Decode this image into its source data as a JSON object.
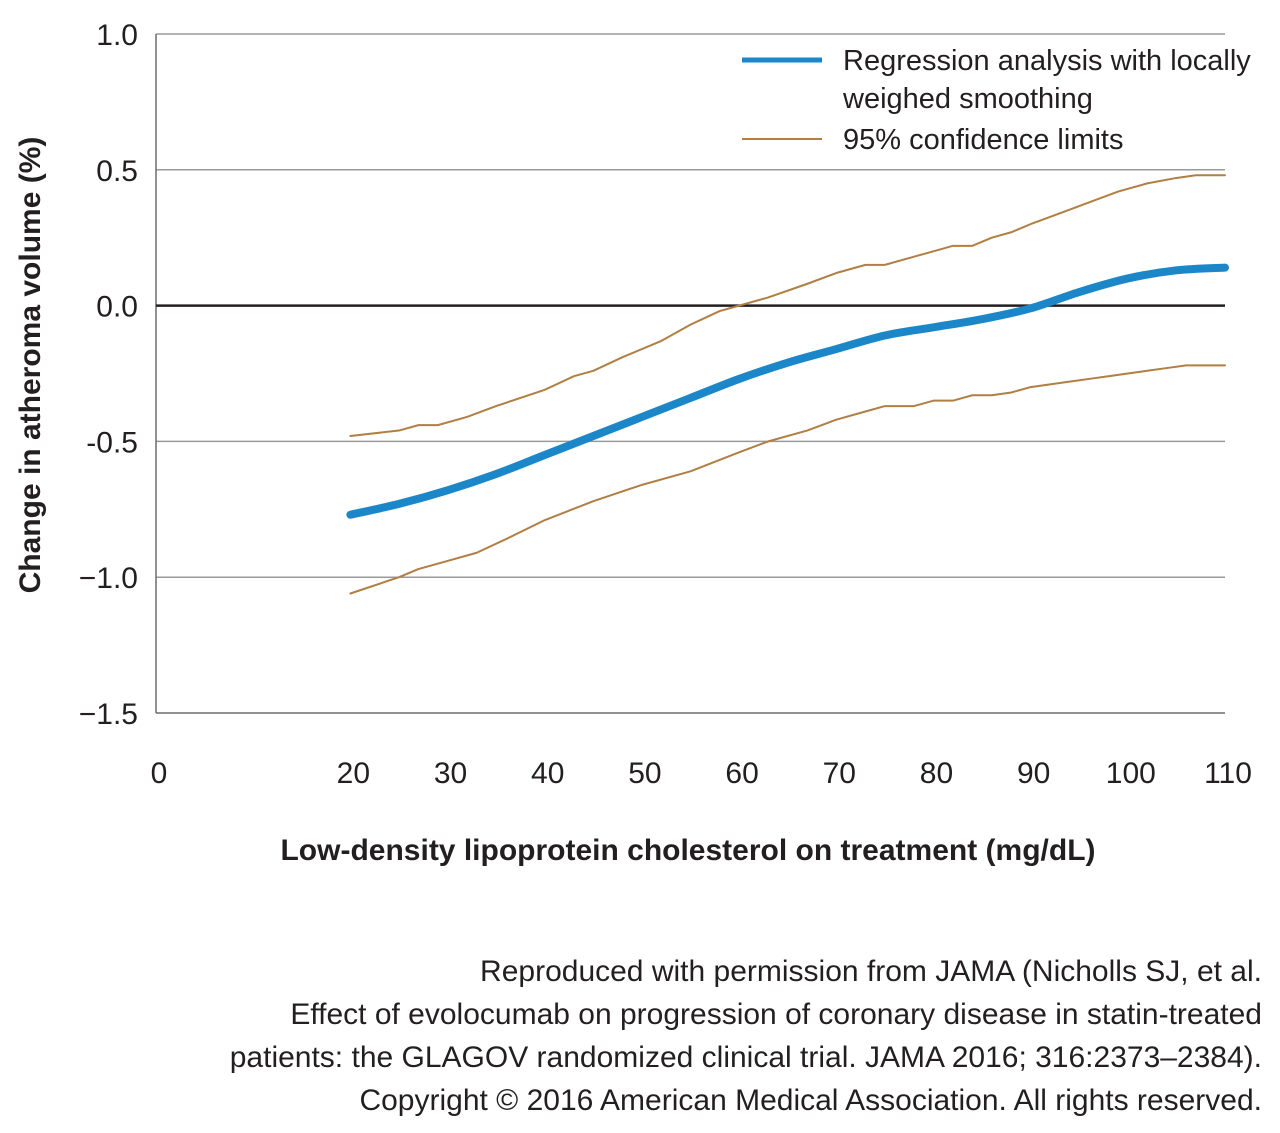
{
  "chart_data": {
    "type": "line",
    "xlabel": "Low-density lipoprotein cholesterol on treatment (mg/dL)",
    "ylabel": "Change in atheroma volume (%)",
    "xlim": [
      0,
      110
    ],
    "ylim": [
      -1.5,
      1.0
    ],
    "x_ticks": [
      "0",
      "20",
      "30",
      "40",
      "50",
      "60",
      "70",
      "80",
      "90",
      "100",
      "110"
    ],
    "x_tick_values": [
      0,
      20,
      30,
      40,
      50,
      60,
      70,
      80,
      90,
      100,
      110
    ],
    "y_ticks": [
      "1.0",
      "0.5",
      "0.0",
      "-0.5",
      "−1.0",
      "−1.5"
    ],
    "y_tick_values": [
      1.0,
      0.5,
      0.0,
      -0.5,
      -1.0,
      -1.5
    ],
    "grid": "horizontal",
    "reference_line_y": 0,
    "legend_position": "top-right",
    "series": [
      {
        "name": "Regression analysis with locally weighed smoothing",
        "name_lines": [
          "Regression analysis with locally",
          "weighed smoothing"
        ],
        "color": "#1b87c9",
        "style": "thick",
        "x": [
          20,
          25,
          30,
          35,
          40,
          45,
          50,
          55,
          60,
          65,
          70,
          75,
          80,
          85,
          90,
          95,
          100,
          105,
          110
        ],
        "y": [
          -0.77,
          -0.73,
          -0.68,
          -0.62,
          -0.55,
          -0.48,
          -0.41,
          -0.34,
          -0.27,
          -0.21,
          -0.16,
          -0.11,
          -0.08,
          -0.05,
          -0.01,
          0.05,
          0.1,
          0.13,
          0.14
        ]
      },
      {
        "name": "95% confidence limits",
        "color": "#b17f44",
        "style": "thin",
        "x": [
          20,
          25,
          27,
          29,
          32,
          35,
          40,
          43,
          45,
          48,
          52,
          55,
          58,
          60,
          63,
          67,
          70,
          73,
          75,
          78,
          80,
          82,
          84,
          86,
          88,
          90,
          93,
          96,
          99,
          102,
          105,
          107,
          110
        ],
        "y": [
          -0.48,
          -0.46,
          -0.44,
          -0.44,
          -0.41,
          -0.37,
          -0.31,
          -0.26,
          -0.24,
          -0.19,
          -0.13,
          -0.07,
          -0.02,
          0.0,
          0.03,
          0.08,
          0.12,
          0.15,
          0.15,
          0.18,
          0.2,
          0.22,
          0.22,
          0.25,
          0.27,
          0.3,
          0.34,
          0.38,
          0.42,
          0.45,
          0.47,
          0.48,
          0.48
        ]
      },
      {
        "name": "95% confidence limits",
        "color": "#b17f44",
        "style": "thin",
        "legend": false,
        "x": [
          20,
          25,
          27,
          30,
          33,
          36,
          40,
          45,
          50,
          55,
          60,
          63,
          67,
          70,
          73,
          75,
          78,
          80,
          82,
          84,
          86,
          88,
          90,
          92,
          94,
          96,
          98,
          100,
          102,
          104,
          106,
          108,
          110
        ],
        "y": [
          -1.06,
          -1.0,
          -0.97,
          -0.94,
          -0.91,
          -0.86,
          -0.79,
          -0.72,
          -0.66,
          -0.61,
          -0.54,
          -0.5,
          -0.46,
          -0.42,
          -0.39,
          -0.37,
          -0.37,
          -0.35,
          -0.35,
          -0.33,
          -0.33,
          -0.32,
          -0.3,
          -0.29,
          -0.28,
          -0.27,
          -0.26,
          -0.25,
          -0.24,
          -0.23,
          -0.22,
          -0.22,
          -0.22
        ]
      }
    ]
  },
  "credit": {
    "lines": [
      "Reproduced with permission from JAMA (Nicholls SJ, et al.",
      "Effect of evolocumab on progression of coronary disease in statin-treated",
      "patients: the GLAGOV randomized clinical trial. JAMA 2016; 316:2373–2384).",
      "Copyright © 2016 American Medical Association. All rights reserved."
    ]
  }
}
